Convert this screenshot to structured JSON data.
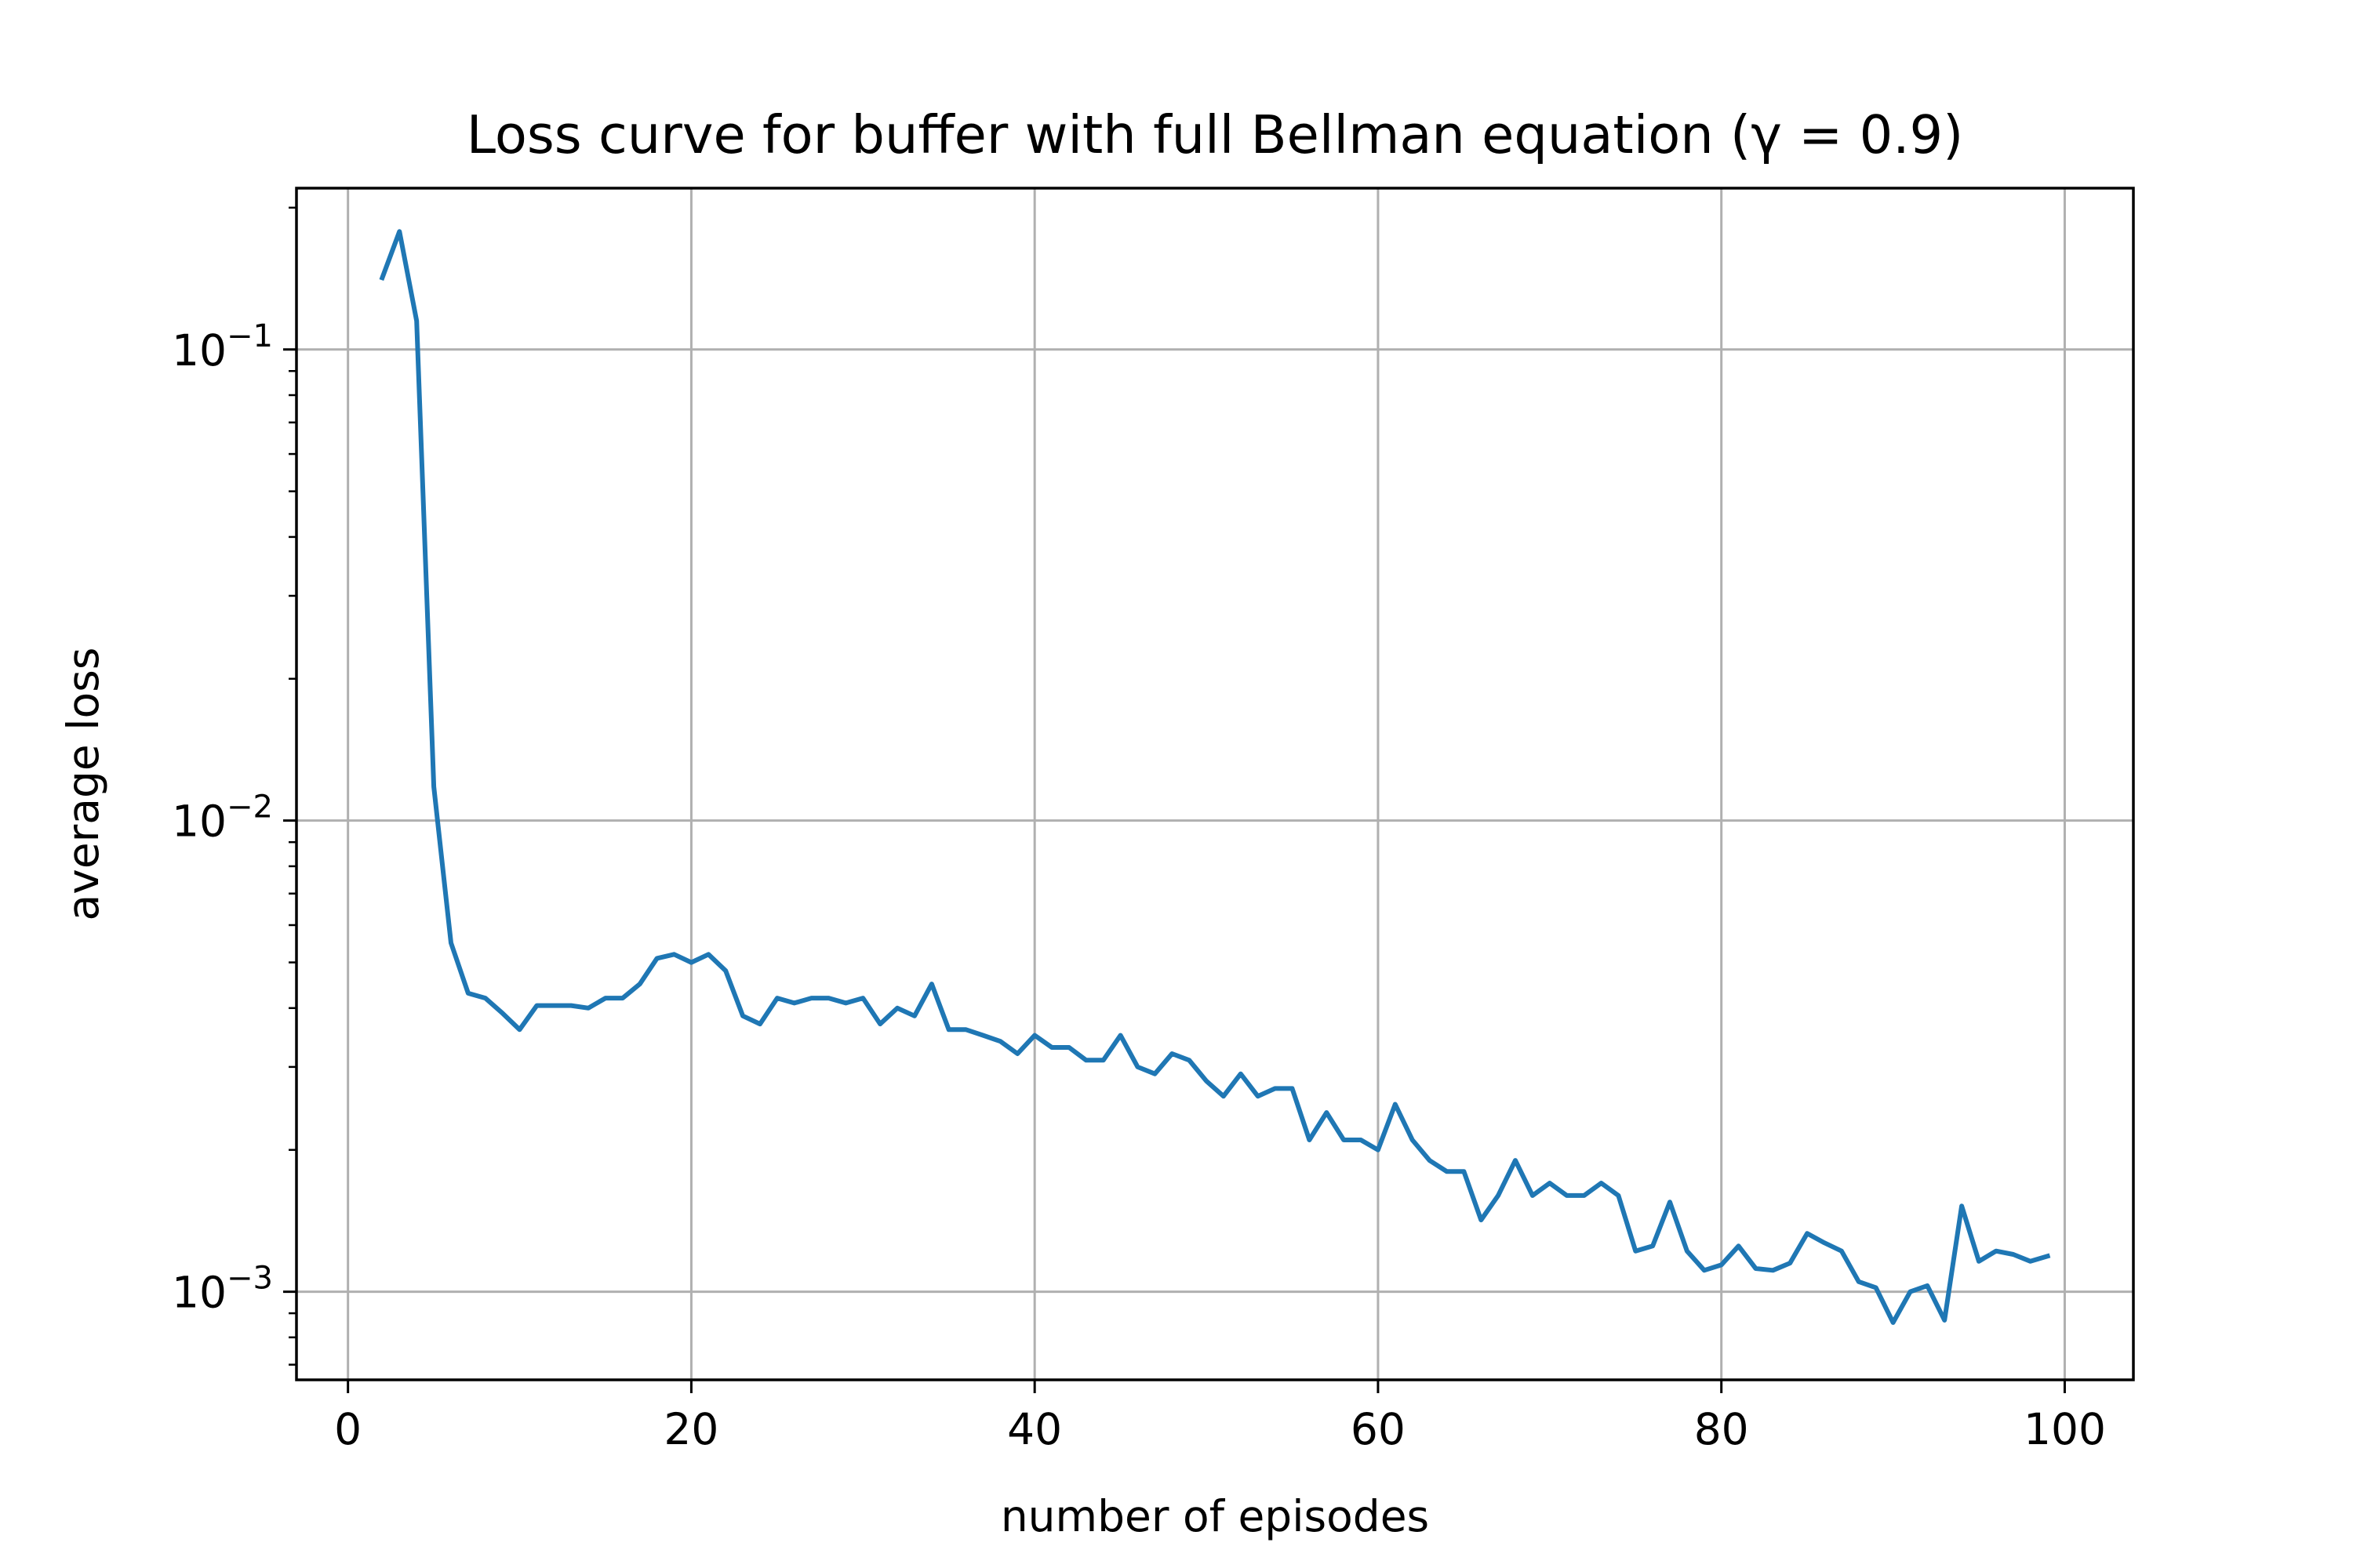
{
  "chart_data": {
    "type": "line",
    "title": "Loss curve for buffer with full Bellman equation (γ = 0.9)",
    "xlabel": "number of episodes",
    "ylabel": "average loss",
    "xscale": "linear",
    "yscale": "log",
    "xlim": [
      -3,
      104
    ],
    "ylim": [
      0.00065,
      0.22
    ],
    "grid": true,
    "xticks": [
      0,
      20,
      40,
      60,
      80,
      100
    ],
    "xtick_labels": [
      "0",
      "20",
      "40",
      "60",
      "80",
      "100"
    ],
    "yticks": [
      0.1,
      0.01,
      0.001
    ],
    "ytick_labels": [
      {
        "base": "10",
        "exp": "−1"
      },
      {
        "base": "10",
        "exp": "−2"
      },
      {
        "base": "10",
        "exp": "−3"
      }
    ],
    "series": [
      {
        "color": "#1f77b4",
        "x": [
          2,
          3,
          4,
          5,
          6,
          7,
          8,
          9,
          10,
          11,
          12,
          13,
          14,
          15,
          16,
          17,
          18,
          19,
          20,
          21,
          22,
          23,
          24,
          25,
          26,
          27,
          28,
          29,
          30,
          31,
          32,
          33,
          34,
          35,
          36,
          37,
          38,
          39,
          40,
          41,
          42,
          43,
          44,
          45,
          46,
          47,
          48,
          49,
          50,
          51,
          52,
          53,
          54,
          55,
          56,
          57,
          58,
          59,
          60,
          61,
          62,
          63,
          64,
          65,
          66,
          67,
          68,
          69,
          70,
          71,
          72,
          73,
          74,
          75,
          76,
          77,
          78,
          79,
          80,
          81,
          82,
          83,
          84,
          85,
          86,
          87,
          88,
          89,
          90,
          91,
          92,
          93,
          94,
          95,
          96,
          97,
          98,
          99
        ],
        "y": [
          0.142,
          0.178,
          0.115,
          0.0118,
          0.0055,
          0.0043,
          0.0042,
          0.0039,
          0.0036,
          0.00405,
          0.00405,
          0.00405,
          0.004,
          0.0042,
          0.0042,
          0.0045,
          0.0051,
          0.0052,
          0.005,
          0.0052,
          0.0048,
          0.00385,
          0.0037,
          0.0042,
          0.0041,
          0.0042,
          0.0042,
          0.0041,
          0.0042,
          0.0037,
          0.004,
          0.00385,
          0.0045,
          0.0036,
          0.0036,
          0.0035,
          0.0034,
          0.0032,
          0.0035,
          0.0033,
          0.0033,
          0.0031,
          0.0031,
          0.0035,
          0.003,
          0.0029,
          0.0032,
          0.0031,
          0.0028,
          0.0026,
          0.0029,
          0.0026,
          0.0027,
          0.0027,
          0.0021,
          0.0024,
          0.0021,
          0.0021,
          0.002,
          0.0025,
          0.0021,
          0.0019,
          0.0018,
          0.0018,
          0.00142,
          0.0016,
          0.0019,
          0.0016,
          0.0017,
          0.0016,
          0.0016,
          0.0017,
          0.0016,
          0.00122,
          0.00125,
          0.00155,
          0.00122,
          0.00111,
          0.00114,
          0.00125,
          0.00112,
          0.00111,
          0.00115,
          0.00133,
          0.00127,
          0.00122,
          0.00105,
          0.00102,
          0.00086,
          0.001,
          0.00103,
          0.00087,
          0.00152,
          0.00116,
          0.00122,
          0.0012,
          0.00116,
          0.00119
        ]
      }
    ]
  }
}
